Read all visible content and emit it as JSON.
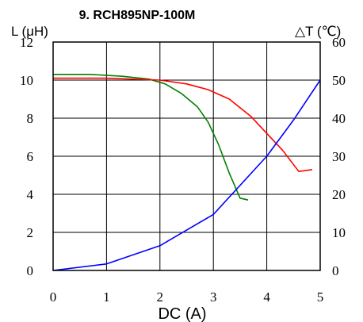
{
  "chart_data": {
    "type": "line",
    "title": "9. RCH895NP-100M",
    "xlabel": "DC (A)",
    "ylabel_left": "L (μH)",
    "ylabel_right": "△T (℃)",
    "xlim": [
      0,
      5
    ],
    "ylim_left": [
      0,
      12
    ],
    "ylim_right": [
      0,
      60
    ],
    "x_ticks": [
      "0",
      "1",
      "2",
      "3",
      "4",
      "5"
    ],
    "y_left_ticks": [
      "0",
      "2",
      "4",
      "6",
      "8",
      "10",
      "12"
    ],
    "y_right_ticks": [
      "0",
      "10",
      "20",
      "30",
      "40",
      "50",
      "60"
    ],
    "grid": true,
    "series": [
      {
        "axis": "left",
        "color": "#008000",
        "points": [
          [
            0,
            10.3
          ],
          [
            0.7,
            10.3
          ],
          [
            1.3,
            10.2
          ],
          [
            1.8,
            10.05
          ],
          [
            2.1,
            9.8
          ],
          [
            2.4,
            9.3
          ],
          [
            2.7,
            8.6
          ],
          [
            2.9,
            7.8
          ],
          [
            3.1,
            6.6
          ],
          [
            3.3,
            5.1
          ],
          [
            3.5,
            3.8
          ],
          [
            3.65,
            3.7
          ]
        ]
      },
      {
        "axis": "left",
        "color": "#ff0000",
        "points": [
          [
            0,
            10.1
          ],
          [
            1.0,
            10.1
          ],
          [
            2.0,
            10.0
          ],
          [
            2.5,
            9.8
          ],
          [
            2.9,
            9.5
          ],
          [
            3.3,
            9.0
          ],
          [
            3.7,
            8.1
          ],
          [
            4.0,
            7.2
          ],
          [
            4.3,
            6.3
          ],
          [
            4.6,
            5.2
          ],
          [
            4.85,
            5.3
          ]
        ]
      },
      {
        "axis": "right",
        "color": "#0000ff",
        "points": [
          [
            0,
            0
          ],
          [
            1.0,
            1.7
          ],
          [
            2.0,
            6.5
          ],
          [
            3.0,
            14.7
          ],
          [
            4.0,
            30.0
          ],
          [
            4.5,
            39.5
          ],
          [
            5.0,
            50.0
          ]
        ]
      }
    ]
  }
}
